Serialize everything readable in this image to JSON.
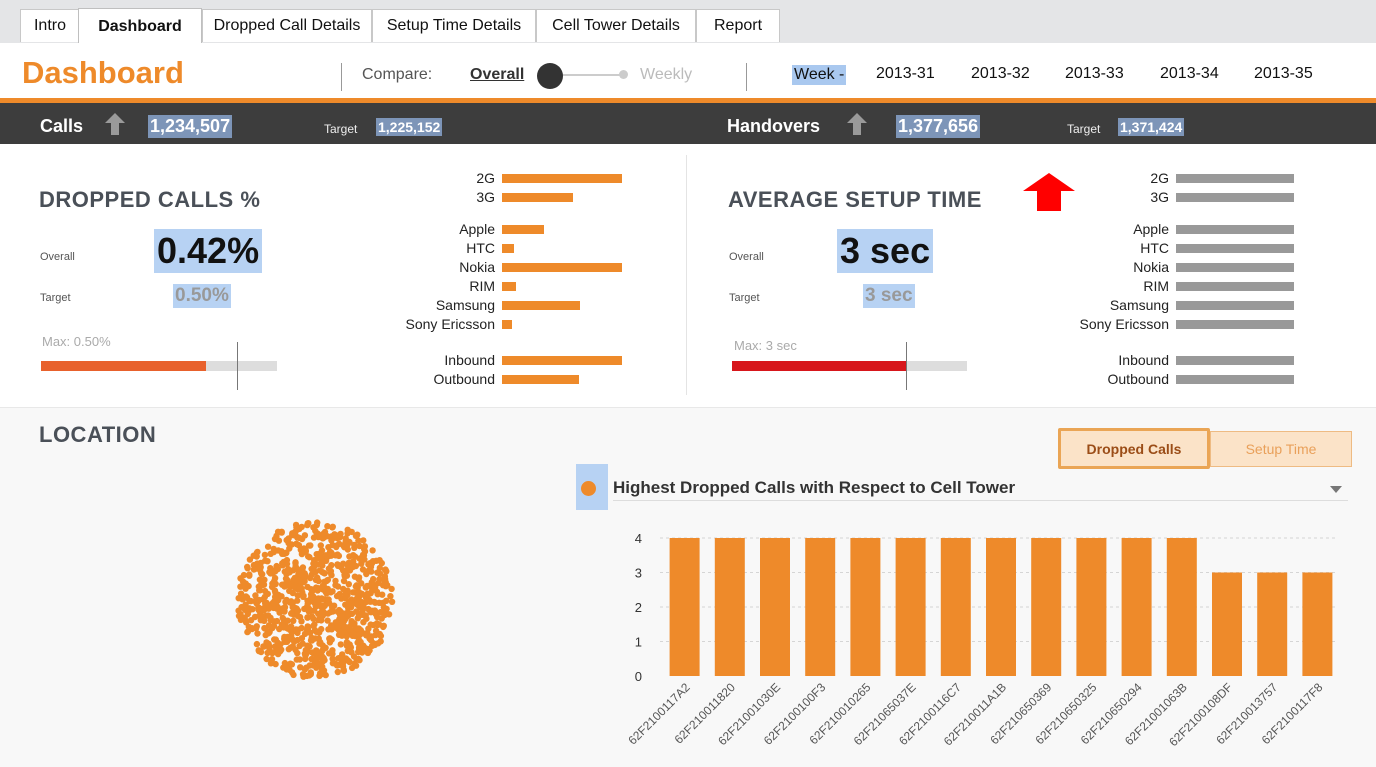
{
  "tabs": [
    {
      "label": "Intro"
    },
    {
      "label": "Dashboard"
    },
    {
      "label": "Dropped Call Details"
    },
    {
      "label": "Setup Time Details"
    },
    {
      "label": "Cell Tower Details"
    },
    {
      "label": "Report"
    }
  ],
  "header": {
    "title": "Dashboard",
    "compare_label": "Compare:",
    "overall_label": "Overall",
    "weekly_label": "Weekly",
    "week_label": "Week -",
    "weeks": [
      "2013-31",
      "2013-32",
      "2013-33",
      "2013-34",
      "2013-35"
    ]
  },
  "kpi": {
    "calls_label": "Calls",
    "calls_value": "1,234,507",
    "calls_target_label": "Target",
    "calls_target_value": "1,225,152",
    "handovers_label": "Handovers",
    "handovers_value": "1,377,656",
    "handovers_target_label": "Target",
    "handovers_target_value": "1,371,424",
    "arrow_color": "#9a9a9a"
  },
  "dropped": {
    "title": "DROPPED CALLS %",
    "overall_label": "Overall",
    "overall_value": "0.42%",
    "target_label": "Target",
    "target_value": "0.50%",
    "max_label": "Max: 0.50%",
    "gauge_fraction": 0.42,
    "target_fraction": 0.5,
    "fill_color": "#e8612c",
    "bar_color": "#ee8a2a",
    "groups": [
      [
        {
          "label": "2G",
          "value": 1.0
        },
        {
          "label": "3G",
          "value": 0.59
        }
      ],
      [
        {
          "label": "Apple",
          "value": 0.35
        },
        {
          "label": "HTC",
          "value": 0.1
        },
        {
          "label": "Nokia",
          "value": 1.0
        },
        {
          "label": "RIM",
          "value": 0.12
        },
        {
          "label": "Samsung",
          "value": 0.65
        },
        {
          "label": "Sony Ericsson",
          "value": 0.08
        }
      ],
      [
        {
          "label": "Inbound",
          "value": 1.0
        },
        {
          "label": "Outbound",
          "value": 0.64
        }
      ]
    ]
  },
  "setup": {
    "title": "AVERAGE SETUP TIME",
    "overall_label": "Overall",
    "overall_value": "3 sec",
    "target_label": "Target",
    "target_value": "3 sec",
    "max_label": "Max: 3 sec",
    "gauge_fraction": 0.74,
    "target_fraction": 0.74,
    "fill_color": "#d7161b",
    "bar_color": "#999999",
    "alert_color": "#ff0000",
    "groups": [
      [
        {
          "label": "2G",
          "value": 1.0
        },
        {
          "label": "3G",
          "value": 1.0
        }
      ],
      [
        {
          "label": "Apple",
          "value": 1.0
        },
        {
          "label": "HTC",
          "value": 1.0
        },
        {
          "label": "Nokia",
          "value": 1.0
        },
        {
          "label": "RIM",
          "value": 1.0
        },
        {
          "label": "Samsung",
          "value": 1.0
        },
        {
          "label": "Sony Ericsson",
          "value": 1.0
        }
      ],
      [
        {
          "label": "Inbound",
          "value": 1.0
        },
        {
          "label": "Outbound",
          "value": 1.0
        }
      ]
    ]
  },
  "location": {
    "title": "LOCATION",
    "btn_dropped": "Dropped Calls",
    "btn_setup": "Setup Time",
    "dot_color": "#ee8a2a"
  },
  "chart_data": {
    "type": "bar",
    "title": "Highest Dropped Calls with Respect to Cell Tower",
    "categories": [
      "62F2100117A2",
      "62F210011820",
      "62F21001030E",
      "62F2100100F3",
      "62F210010265",
      "62F21065037E",
      "62F2100116C7",
      "62F210011A1B",
      "62F210650369",
      "62F210650325",
      "62F210650294",
      "62F21001063B",
      "62F2100108DF",
      "62F210013757",
      "62F2100117F8"
    ],
    "values": [
      4,
      4,
      4,
      4,
      4,
      4,
      4,
      4,
      4,
      4,
      4,
      4,
      3,
      3,
      3
    ],
    "yticks": [
      "0",
      "1",
      "2",
      "3",
      "4"
    ],
    "ylim": [
      0,
      4
    ],
    "grid": true,
    "color": "#ee8a2a"
  }
}
